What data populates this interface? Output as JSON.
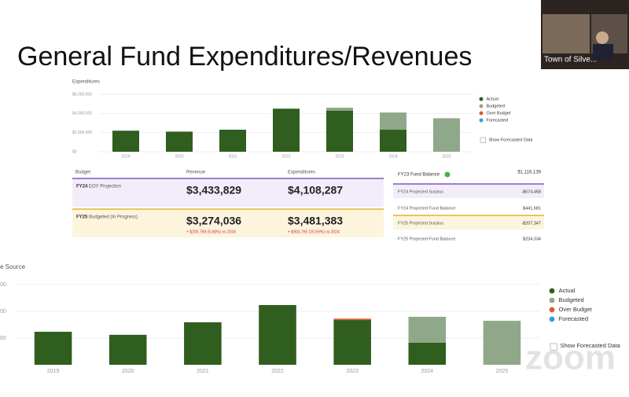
{
  "title": "General Fund Expenditures/Revenues",
  "chart_data": [
    {
      "type": "bar",
      "stacked": true,
      "title": "Expenditures",
      "categories": [
        "2019",
        "2020",
        "2021",
        "2022",
        "2023",
        "2024",
        "2025"
      ],
      "series": [
        {
          "name": "Actual",
          "color": "#2f5e1f",
          "values": [
            2200000,
            2100000,
            2300000,
            4500000,
            4300000,
            2300000,
            null
          ]
        },
        {
          "name": "Budgeted",
          "color": "#8fa889",
          "values": [
            null,
            null,
            null,
            null,
            300000,
            1800000,
            3500000
          ]
        },
        {
          "name": "Over Budget",
          "color": "#e4572e",
          "values": [
            null,
            null,
            null,
            null,
            null,
            null,
            null
          ]
        },
        {
          "name": "Forecasted",
          "color": "#3a9ad9",
          "values": [
            null,
            null,
            null,
            null,
            null,
            null,
            null
          ]
        }
      ],
      "ylim": [
        0,
        6000000
      ],
      "yticks": [
        {
          "value": 0,
          "label": "$0"
        },
        {
          "value": 2000000,
          "label": "$2,000,000"
        },
        {
          "value": 4000000,
          "label": "$4,000,000"
        },
        {
          "value": 6000000,
          "label": "$6,000,000"
        }
      ],
      "grid": true,
      "toggle": "Show Forecasted Data"
    },
    {
      "type": "bar",
      "stacked": true,
      "title": "e Source",
      "categories": [
        "2019",
        "2020",
        "2021",
        "2022",
        "2023",
        "2024",
        "2025"
      ],
      "series": [
        {
          "name": "Actual",
          "color": "#2f5e1f",
          "values": [
            2470000,
            2240000,
            3180000,
            4470000,
            3350000,
            1650000,
            null
          ]
        },
        {
          "name": "Budgeted",
          "color": "#8fa889",
          "values": [
            null,
            null,
            null,
            null,
            null,
            1940000,
            3290000
          ]
        },
        {
          "name": "Over Budget",
          "color": "#e4572e",
          "values": [
            null,
            null,
            null,
            null,
            100000,
            null,
            null
          ]
        },
        {
          "name": "Forecasted",
          "color": "#3a9ad9",
          "values": [
            null,
            null,
            null,
            null,
            null,
            null,
            null
          ]
        }
      ],
      "ylim": [
        0,
        6000000
      ],
      "yticks": [
        {
          "value": 2000000,
          "label": "00"
        },
        {
          "value": 4000000,
          "label": "00"
        },
        {
          "value": 6000000,
          "label": "00"
        }
      ],
      "grid": true,
      "toggle": "Show Forecasted Data"
    }
  ],
  "summary": {
    "headers": [
      "Budget",
      "Revenue",
      "Expenditures"
    ],
    "rows": [
      {
        "label": "FY24",
        "sublabel": "EOY Projection",
        "revenue": "$3,433,829",
        "expenditures": "$4,108,287"
      },
      {
        "label": "FY25",
        "sublabel": "Budgeted (In Progress)",
        "revenue": "$3,274,036",
        "expenditures": "$3,481,383",
        "revenue_change": "+ $200,769 (5.68%) vs 2024",
        "expenditures_change": "+ $903,765 (20.59%) vs 2024"
      }
    ]
  },
  "fund_balance": {
    "title": "FY23 Fund Balance",
    "value": "$1,116,139",
    "rows": [
      {
        "label": "FY24 Projected Surplus",
        "value": "-$674,458"
      },
      {
        "label": "FY24 Projected Fund Balance",
        "value": "$441,681"
      },
      {
        "label": "FY25 Projected Surplus",
        "value": "-$207,347"
      },
      {
        "label": "FY25 Projected Fund Balance",
        "value": "$234,334"
      }
    ]
  },
  "zoom": {
    "participant": "Town of Silve...",
    "watermark": "zoom"
  }
}
